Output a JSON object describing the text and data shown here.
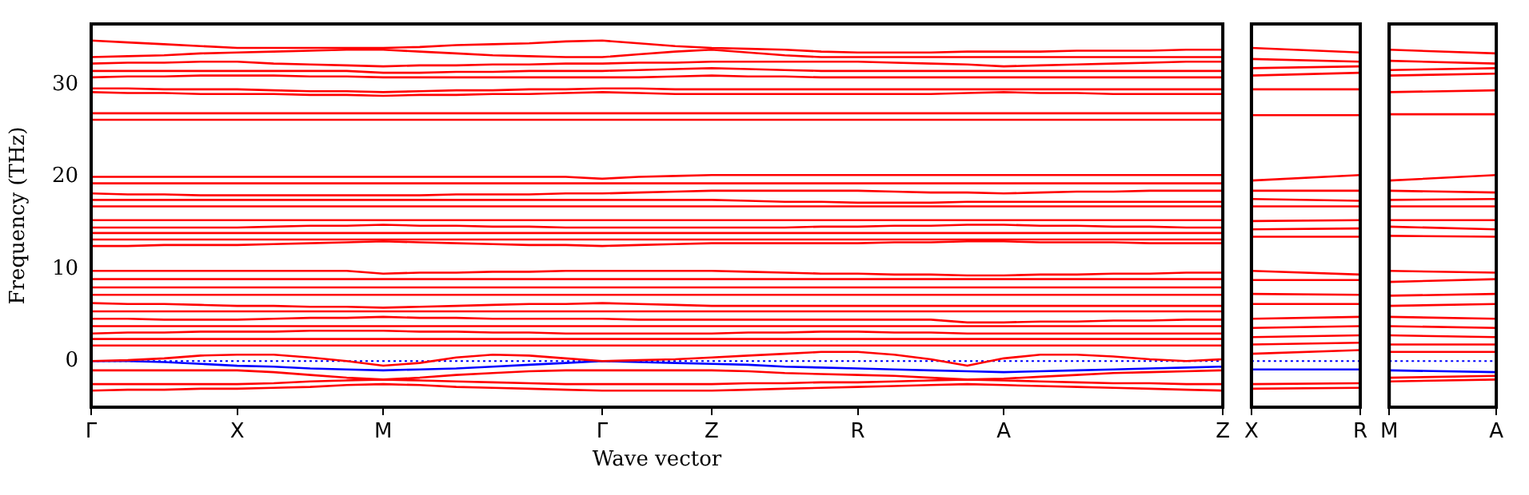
{
  "chart_data": [
    {
      "type": "line",
      "xlabel": "Wave vector",
      "ylabel": "Frequency (THz)",
      "marker": "none",
      "line_style": "solid",
      "categories": [
        "Γ",
        null,
        null,
        null,
        "X",
        null,
        null,
        null,
        "M",
        null,
        null,
        null,
        null,
        null,
        "Γ",
        null,
        null,
        "Z",
        null,
        null,
        null,
        "R",
        null,
        null,
        null,
        "A",
        null,
        null,
        null,
        null,
        null,
        "Z"
      ],
      "ylim": [
        -5,
        36.6
      ],
      "yticks": [
        0,
        10,
        20,
        30
      ],
      "ref_lines": [
        {
          "axis": "y",
          "value": 0,
          "color": "#0000ff",
          "line_style": "dotted"
        }
      ],
      "series": [
        {
          "color": "#ff0000",
          "values": [
            34.8,
            34.6,
            34.4,
            34.2,
            34,
            34,
            34,
            34,
            34,
            34.1,
            34.3,
            34.4,
            34.5,
            34.7,
            34.8,
            34.5,
            34.2,
            34,
            33.9,
            33.8,
            33.6,
            33.5,
            33.5,
            33.5,
            33.6,
            33.6,
            33.6,
            33.7,
            33.7,
            33.7,
            33.8,
            33.8
          ]
        },
        {
          "color": "#ff0000",
          "values": [
            33,
            33.1,
            33.2,
            33.4,
            33.5,
            33.6,
            33.7,
            33.8,
            33.8,
            33.6,
            33.4,
            33.2,
            33.1,
            33,
            33,
            33.3,
            33.6,
            33.8,
            33.5,
            33.2,
            33,
            33,
            33,
            33,
            33,
            33,
            33,
            33,
            33,
            33,
            33,
            33
          ]
        },
        {
          "color": "#ff0000",
          "values": [
            32.3,
            32.4,
            32.4,
            32.5,
            32.5,
            32.3,
            32.2,
            32.1,
            32,
            32.1,
            32.1,
            32.2,
            32.2,
            32.3,
            32.3,
            32.4,
            32.4,
            32.5,
            32.5,
            32.5,
            32.5,
            32.5,
            32.4,
            32.3,
            32.2,
            32,
            32.1,
            32.2,
            32.3,
            32.4,
            32.5,
            32.5
          ]
        },
        {
          "color": "#ff0000",
          "values": [
            31.5,
            31.5,
            31.5,
            31.5,
            31.5,
            31.5,
            31.5,
            31.5,
            31.3,
            31.3,
            31.4,
            31.4,
            31.5,
            31.5,
            31.5,
            31.6,
            31.7,
            31.8,
            31.7,
            31.6,
            31.5,
            31.5,
            31.5,
            31.5,
            31.5,
            31.5,
            31.5,
            31.5,
            31.5,
            31.5,
            31.5,
            31.5
          ]
        },
        {
          "color": "#ff0000",
          "values": [
            30.8,
            30.9,
            30.9,
            31,
            31,
            31,
            30.9,
            30.9,
            30.8,
            30.8,
            30.8,
            30.8,
            30.8,
            30.8,
            30.8,
            30.8,
            30.9,
            31,
            30.9,
            30.9,
            30.8,
            30.8,
            30.8,
            30.8,
            30.8,
            30.8,
            30.8,
            30.8,
            30.8,
            30.8,
            30.8,
            30.8
          ]
        },
        {
          "color": "#ff0000",
          "values": [
            29.6,
            29.6,
            29.5,
            29.5,
            29.5,
            29.4,
            29.3,
            29.3,
            29.2,
            29.3,
            29.4,
            29.4,
            29.5,
            29.5,
            29.6,
            29.6,
            29.5,
            29.5,
            29.5,
            29.5,
            29.5,
            29.5,
            29.5,
            29.5,
            29.5,
            29.5,
            29.5,
            29.5,
            29.5,
            29.5,
            29.5,
            29.5
          ]
        },
        {
          "color": "#ff0000",
          "values": [
            29.2,
            29.1,
            29.1,
            29,
            29,
            29,
            28.9,
            28.9,
            28.8,
            28.9,
            28.9,
            29,
            29,
            29.1,
            29.2,
            29.1,
            29,
            29,
            29,
            29,
            29,
            29,
            29,
            29,
            29.1,
            29.2,
            29.1,
            29.1,
            29,
            29,
            29,
            29
          ]
        },
        {
          "color": "#ff0000",
          "values": [
            26.9,
            26.9,
            26.9,
            26.9,
            26.9,
            26.9,
            26.9,
            26.9,
            26.9,
            26.9,
            26.9,
            26.9,
            26.9,
            26.9,
            26.9,
            26.9,
            26.9,
            26.9,
            26.9,
            26.9,
            26.9,
            26.9,
            26.9,
            26.9,
            26.9,
            26.9,
            26.9,
            26.9,
            26.9,
            26.9,
            26.9,
            26.9
          ]
        },
        {
          "color": "#ff0000",
          "values": [
            26.2,
            26.2,
            26.2,
            26.2,
            26.2,
            26.2,
            26.2,
            26.2,
            26.2,
            26.2,
            26.2,
            26.2,
            26.2,
            26.2,
            26.2,
            26.2,
            26.2,
            26.2,
            26.2,
            26.2,
            26.2,
            26.2,
            26.2,
            26.2,
            26.2,
            26.2,
            26.2,
            26.2,
            26.2,
            26.2,
            26.2,
            26.2
          ]
        },
        {
          "color": "#ff0000",
          "values": [
            20,
            20,
            20,
            20,
            20,
            20,
            20,
            20,
            20,
            20,
            20,
            20,
            20,
            20,
            19.8,
            20,
            20.1,
            20.2,
            20.2,
            20.2,
            20.2,
            20.2,
            20.2,
            20.2,
            20.2,
            20.2,
            20.2,
            20.2,
            20.2,
            20.2,
            20.2,
            20.2
          ]
        },
        {
          "color": "#ff0000",
          "values": [
            19.3,
            19.3,
            19.3,
            19.3,
            19.3,
            19.3,
            19.3,
            19.3,
            19.3,
            19.3,
            19.3,
            19.3,
            19.3,
            19.3,
            19.3,
            19.3,
            19.3,
            19.3,
            19.3,
            19.3,
            19.3,
            19.3,
            19.3,
            19.3,
            19.3,
            19.3,
            19.3,
            19.3,
            19.3,
            19.3,
            19.3,
            19.3
          ]
        },
        {
          "color": "#ff0000",
          "values": [
            18.2,
            18.1,
            18.1,
            18,
            18,
            18,
            18,
            18,
            18,
            18,
            18.1,
            18.1,
            18.1,
            18.2,
            18.2,
            18.3,
            18.4,
            18.5,
            18.5,
            18.5,
            18.5,
            18.5,
            18.4,
            18.3,
            18.3,
            18.2,
            18.3,
            18.4,
            18.4,
            18.5,
            18.5,
            18.5
          ]
        },
        {
          "color": "#ff0000",
          "values": [
            17.5,
            17.5,
            17.5,
            17.5,
            17.5,
            17.5,
            17.5,
            17.5,
            17.5,
            17.5,
            17.5,
            17.5,
            17.5,
            17.5,
            17.5,
            17.5,
            17.5,
            17.5,
            17.4,
            17.3,
            17.3,
            17.2,
            17.2,
            17.2,
            17.3,
            17.3,
            17.3,
            17.3,
            17.3,
            17.3,
            17.3,
            17.3
          ]
        },
        {
          "color": "#ff0000",
          "values": [
            16.8,
            16.8,
            16.8,
            16.8,
            16.8,
            16.8,
            16.8,
            16.8,
            16.8,
            16.8,
            16.8,
            16.8,
            16.8,
            16.8,
            16.8,
            16.8,
            16.8,
            16.8,
            16.8,
            16.8,
            16.8,
            16.8,
            16.8,
            16.8,
            16.8,
            16.8,
            16.8,
            16.8,
            16.8,
            16.8,
            16.8,
            16.8
          ]
        },
        {
          "color": "#ff0000",
          "values": [
            15.3,
            15.3,
            15.3,
            15.3,
            15.3,
            15.3,
            15.3,
            15.3,
            15.3,
            15.3,
            15.3,
            15.3,
            15.3,
            15.3,
            15.3,
            15.3,
            15.3,
            15.3,
            15.3,
            15.3,
            15.3,
            15.3,
            15.3,
            15.3,
            15.3,
            15.3,
            15.3,
            15.3,
            15.3,
            15.3,
            15.3,
            15.3
          ]
        },
        {
          "color": "#ff0000",
          "values": [
            14.5,
            14.5,
            14.5,
            14.5,
            14.5,
            14.6,
            14.7,
            14.7,
            14.8,
            14.7,
            14.7,
            14.6,
            14.6,
            14.5,
            14.5,
            14.5,
            14.5,
            14.5,
            14.5,
            14.5,
            14.6,
            14.6,
            14.7,
            14.7,
            14.8,
            14.8,
            14.7,
            14.7,
            14.6,
            14.6,
            14.5,
            14.5
          ]
        },
        {
          "color": "#ff0000",
          "values": [
            13.9,
            13.9,
            13.9,
            13.9,
            13.9,
            13.9,
            13.9,
            13.9,
            13.9,
            13.9,
            13.9,
            13.9,
            13.9,
            13.9,
            13.9,
            13.9,
            13.9,
            13.9,
            13.9,
            13.9,
            13.9,
            13.9,
            13.9,
            13.9,
            13.9,
            13.9,
            13.9,
            13.9,
            13.9,
            13.9,
            13.9,
            13.9
          ]
        },
        {
          "color": "#ff0000",
          "values": [
            13.2,
            13.2,
            13.2,
            13.2,
            13.2,
            13.2,
            13.2,
            13.2,
            13.2,
            13.2,
            13.2,
            13.2,
            13.2,
            13.2,
            13.2,
            13.2,
            13.2,
            13.2,
            13.2,
            13.2,
            13.2,
            13.2,
            13.2,
            13.2,
            13.2,
            13.2,
            13.2,
            13.2,
            13.2,
            13.2,
            13.2,
            13.2
          ]
        },
        {
          "color": "#ff0000",
          "values": [
            12.5,
            12.5,
            12.6,
            12.6,
            12.6,
            12.7,
            12.8,
            12.9,
            13,
            12.9,
            12.8,
            12.7,
            12.6,
            12.6,
            12.5,
            12.6,
            12.7,
            12.8,
            12.8,
            12.8,
            12.8,
            12.8,
            12.9,
            12.9,
            13,
            13,
            12.9,
            12.9,
            12.9,
            12.8,
            12.8,
            12.8
          ]
        },
        {
          "color": "#ff0000",
          "values": [
            9.8,
            9.8,
            9.8,
            9.8,
            9.8,
            9.8,
            9.8,
            9.8,
            9.5,
            9.6,
            9.6,
            9.7,
            9.7,
            9.8,
            9.8,
            9.8,
            9.8,
            9.8,
            9.7,
            9.6,
            9.5,
            9.5,
            9.4,
            9.4,
            9.3,
            9.3,
            9.4,
            9.4,
            9.5,
            9.5,
            9.6,
            9.6
          ]
        },
        {
          "color": "#ff0000",
          "values": [
            8.9,
            8.9,
            8.9,
            8.9,
            8.9,
            8.9,
            8.9,
            8.9,
            8.9,
            8.9,
            8.9,
            8.9,
            8.9,
            8.9,
            8.9,
            8.9,
            8.9,
            8.9,
            8.9,
            8.9,
            8.9,
            8.9,
            8.9,
            8.9,
            8.9,
            8.9,
            8.9,
            8.9,
            8.9,
            8.9,
            8.9,
            8.9
          ]
        },
        {
          "color": "#ff0000",
          "values": [
            8,
            8,
            8,
            8,
            8,
            8,
            8,
            8,
            8,
            8,
            8,
            8,
            8,
            8,
            8,
            8,
            8,
            8,
            8,
            8,
            8,
            8,
            8,
            8,
            8,
            8,
            8,
            8,
            8,
            8,
            8,
            8
          ]
        },
        {
          "color": "#ff0000",
          "values": [
            7.2,
            7.2,
            7.2,
            7.2,
            7.2,
            7.2,
            7.2,
            7.2,
            7.2,
            7.2,
            7.2,
            7.2,
            7.2,
            7.2,
            7.2,
            7.2,
            7.2,
            7.2,
            7.2,
            7.2,
            7.2,
            7.2,
            7.2,
            7.2,
            7.2,
            7.2,
            7.2,
            7.2,
            7.2,
            7.2,
            7.2,
            7.2
          ]
        },
        {
          "color": "#ff0000",
          "values": [
            6.3,
            6.2,
            6.2,
            6.1,
            6,
            6,
            5.9,
            5.9,
            5.8,
            5.9,
            6,
            6.1,
            6.2,
            6.2,
            6.3,
            6.2,
            6.1,
            6,
            6,
            6,
            6,
            6,
            6,
            6,
            6,
            6,
            6,
            6,
            6,
            6,
            6,
            6
          ]
        },
        {
          "color": "#ff0000",
          "values": [
            5.4,
            5.4,
            5.4,
            5.4,
            5.4,
            5.4,
            5.4,
            5.4,
            5.4,
            5.4,
            5.4,
            5.4,
            5.4,
            5.4,
            5.4,
            5.4,
            5.4,
            5.4,
            5.4,
            5.4,
            5.4,
            5.4,
            5.4,
            5.4,
            5.4,
            5.4,
            5.4,
            5.4,
            5.4,
            5.4,
            5.4,
            5.4
          ]
        },
        {
          "color": "#ff0000",
          "values": [
            4.6,
            4.6,
            4.5,
            4.5,
            4.5,
            4.6,
            4.7,
            4.7,
            4.8,
            4.7,
            4.7,
            4.6,
            4.6,
            4.6,
            4.6,
            4.5,
            4.5,
            4.5,
            4.5,
            4.5,
            4.5,
            4.5,
            4.5,
            4.5,
            4.2,
            4.2,
            4.3,
            4.3,
            4.4,
            4.4,
            4.5,
            4.5
          ]
        },
        {
          "color": "#ff0000",
          "values": [
            3.8,
            3.8,
            3.8,
            3.8,
            3.8,
            3.8,
            3.8,
            3.8,
            3.8,
            3.8,
            3.8,
            3.8,
            3.8,
            3.8,
            3.8,
            3.8,
            3.8,
            3.8,
            3.8,
            3.8,
            3.8,
            3.8,
            3.8,
            3.8,
            3.8,
            3.8,
            3.8,
            3.8,
            3.8,
            3.8,
            3.8,
            3.8
          ]
        },
        {
          "color": "#ff0000",
          "values": [
            3,
            3.1,
            3.1,
            3.2,
            3.2,
            3.2,
            3.3,
            3.3,
            3.3,
            3.2,
            3.2,
            3.1,
            3.1,
            3,
            3,
            3,
            3,
            3,
            3.1,
            3.1,
            3.2,
            3.2,
            3.1,
            3.1,
            3,
            3,
            3,
            3,
            3,
            3,
            3,
            3
          ]
        },
        {
          "color": "#ff0000",
          "values": [
            2.4,
            2.4,
            2.4,
            2.4,
            2.4,
            2.4,
            2.4,
            2.4,
            2.4,
            2.4,
            2.4,
            2.4,
            2.4,
            2.4,
            2.4,
            2.4,
            2.4,
            2.4,
            2.4,
            2.4,
            2.4,
            2.4,
            2.4,
            2.4,
            2.4,
            2.4,
            2.4,
            2.4,
            2.4,
            2.4,
            2.4,
            2.4
          ]
        },
        {
          "color": "#ff0000",
          "values": [
            1.7,
            1.7,
            1.7,
            1.7,
            1.7,
            1.7,
            1.7,
            1.7,
            1.7,
            1.7,
            1.7,
            1.7,
            1.7,
            1.7,
            1.7,
            1.7,
            1.7,
            1.7,
            1.7,
            1.7,
            1.7,
            1.7,
            1.7,
            1.7,
            1.7,
            1.7,
            1.7,
            1.7,
            1.7,
            1.7,
            1.7,
            1.7
          ]
        },
        {
          "color": "#ff0000",
          "values": [
            0,
            0.1,
            0.3,
            0.6,
            0.7,
            0.7,
            0.4,
            0,
            -0.5,
            -0.2,
            0.4,
            0.7,
            0.6,
            0.3,
            0,
            0.1,
            0.2,
            0.4,
            0.6,
            0.8,
            1,
            1,
            0.7,
            0.2,
            -0.5,
            0.3,
            0.7,
            0.7,
            0.5,
            0.2,
            0,
            0.2
          ]
        },
        {
          "color": "#0000ff",
          "values": [
            0,
            0,
            -0.1,
            -0.3,
            -0.5,
            -0.6,
            -0.8,
            -0.9,
            -1,
            -0.9,
            -0.8,
            -0.6,
            -0.4,
            -0.2,
            0,
            -0.1,
            -0.2,
            -0.3,
            -0.4,
            -0.6,
            -0.7,
            -0.8,
            -0.9,
            -1,
            -1.1,
            -1.2,
            -1.1,
            -1,
            -0.9,
            -0.8,
            -0.7,
            -0.6
          ]
        },
        {
          "color": "#ff0000",
          "values": [
            -1,
            -1,
            -1,
            -1,
            -1,
            -1.2,
            -1.5,
            -1.8,
            -2,
            -1.8,
            -1.5,
            -1.3,
            -1.1,
            -1,
            -1,
            -1,
            -1,
            -1,
            -1.1,
            -1.3,
            -1.4,
            -1.5,
            -1.6,
            -1.8,
            -2,
            -1.9,
            -1.7,
            -1.5,
            -1.3,
            -1.2,
            -1.1,
            -1
          ]
        },
        {
          "color": "#ff0000",
          "values": [
            -2.5,
            -2.5,
            -2.5,
            -2.5,
            -2.5,
            -2.4,
            -2.2,
            -2.1,
            -2,
            -2.1,
            -2.2,
            -2.3,
            -2.4,
            -2.5,
            -2.5,
            -2.5,
            -2.5,
            -2.5,
            -2.4,
            -2.4,
            -2.3,
            -2.3,
            -2.2,
            -2.1,
            -2,
            -2.1,
            -2.2,
            -2.3,
            -2.4,
            -2.4,
            -2.5,
            -2.5
          ]
        },
        {
          "color": "#ff0000",
          "values": [
            -3.2,
            -3.1,
            -3.1,
            -3,
            -3,
            -2.9,
            -2.8,
            -2.6,
            -2.5,
            -2.6,
            -2.8,
            -2.9,
            -3,
            -3.1,
            -3.2,
            -3.2,
            -3.2,
            -3.2,
            -3.1,
            -3,
            -2.9,
            -2.8,
            -2.7,
            -2.6,
            -2.5,
            -2.6,
            -2.7,
            -2.8,
            -2.9,
            -3,
            -3.1,
            -3.2
          ]
        }
      ]
    },
    {
      "type": "line",
      "tick_labels": "x",
      "marker": "none",
      "line_style": "solid",
      "categories": [
        "X",
        "R"
      ],
      "ylim": [
        -5,
        36.6
      ],
      "yticks": [
        0,
        10,
        20,
        30
      ],
      "ref_lines": [
        {
          "axis": "y",
          "value": 0,
          "color": "#0000ff",
          "line_style": "dotted"
        }
      ],
      "series": [
        {
          "color": "#ff0000",
          "values": [
            34,
            33.5
          ]
        },
        {
          "color": "#ff0000",
          "values": [
            32.8,
            32.5
          ]
        },
        {
          "color": "#ff0000",
          "values": [
            31.8,
            32
          ]
        },
        {
          "color": "#ff0000",
          "values": [
            31,
            31.3
          ]
        },
        {
          "color": "#ff0000",
          "values": [
            29.5,
            29.5
          ]
        },
        {
          "color": "#ff0000",
          "values": [
            26.7,
            26.7
          ]
        },
        {
          "color": "#ff0000",
          "values": [
            19.6,
            20.2
          ]
        },
        {
          "color": "#ff0000",
          "values": [
            18.5,
            18.5
          ]
        },
        {
          "color": "#ff0000",
          "values": [
            17.6,
            17.4
          ]
        },
        {
          "color": "#ff0000",
          "values": [
            16.8,
            16.8
          ]
        },
        {
          "color": "#ff0000",
          "values": [
            15.2,
            15.3
          ]
        },
        {
          "color": "#ff0000",
          "values": [
            14.3,
            14.4
          ]
        },
        {
          "color": "#ff0000",
          "values": [
            13.5,
            13.5
          ]
        },
        {
          "color": "#ff0000",
          "values": [
            9.8,
            9.4
          ]
        },
        {
          "color": "#ff0000",
          "values": [
            8.8,
            8.8
          ]
        },
        {
          "color": "#ff0000",
          "values": [
            7.3,
            7.2
          ]
        },
        {
          "color": "#ff0000",
          "values": [
            6.2,
            6.2
          ]
        },
        {
          "color": "#ff0000",
          "values": [
            4.6,
            4.8
          ]
        },
        {
          "color": "#ff0000",
          "values": [
            3.6,
            3.8
          ]
        },
        {
          "color": "#ff0000",
          "values": [
            2.6,
            2.8
          ]
        },
        {
          "color": "#ff0000",
          "values": [
            1.8,
            2
          ]
        },
        {
          "color": "#ff0000",
          "values": [
            0.8,
            1.2
          ]
        },
        {
          "color": "#0000ff",
          "values": [
            -0.9,
            -0.9
          ]
        },
        {
          "color": "#ff0000",
          "values": [
            -2.5,
            -2.4
          ]
        },
        {
          "color": "#ff0000",
          "values": [
            -3,
            -2.9
          ]
        }
      ]
    },
    {
      "type": "line",
      "tick_labels": "x",
      "marker": "none",
      "line_style": "solid",
      "categories": [
        "M",
        "A"
      ],
      "ylim": [
        -5,
        36.6
      ],
      "yticks": [
        0,
        10,
        20,
        30
      ],
      "ref_lines": [
        {
          "axis": "y",
          "value": 0,
          "color": "#0000ff",
          "line_style": "dotted"
        }
      ],
      "series": [
        {
          "color": "#ff0000",
          "values": [
            33.8,
            33.4
          ]
        },
        {
          "color": "#ff0000",
          "values": [
            32.6,
            32.3
          ]
        },
        {
          "color": "#ff0000",
          "values": [
            31.6,
            31.8
          ]
        },
        {
          "color": "#ff0000",
          "values": [
            31,
            31.2
          ]
        },
        {
          "color": "#ff0000",
          "values": [
            29.2,
            29.4
          ]
        },
        {
          "color": "#ff0000",
          "values": [
            26.8,
            26.8
          ]
        },
        {
          "color": "#ff0000",
          "values": [
            19.6,
            20.2
          ]
        },
        {
          "color": "#ff0000",
          "values": [
            18.5,
            18.3
          ]
        },
        {
          "color": "#ff0000",
          "values": [
            17.5,
            17.6
          ]
        },
        {
          "color": "#ff0000",
          "values": [
            16.8,
            16.8
          ]
        },
        {
          "color": "#ff0000",
          "values": [
            15.3,
            15.3
          ]
        },
        {
          "color": "#ff0000",
          "values": [
            14.6,
            14.3
          ]
        },
        {
          "color": "#ff0000",
          "values": [
            13.6,
            13.5
          ]
        },
        {
          "color": "#ff0000",
          "values": [
            9.8,
            9.6
          ]
        },
        {
          "color": "#ff0000",
          "values": [
            8.6,
            8.9
          ]
        },
        {
          "color": "#ff0000",
          "values": [
            7.1,
            7.3
          ]
        },
        {
          "color": "#ff0000",
          "values": [
            6,
            6.2
          ]
        },
        {
          "color": "#ff0000",
          "values": [
            4.8,
            4.6
          ]
        },
        {
          "color": "#ff0000",
          "values": [
            3.8,
            3.6
          ]
        },
        {
          "color": "#ff0000",
          "values": [
            2.8,
            2.6
          ]
        },
        {
          "color": "#ff0000",
          "values": [
            1.8,
            1.8
          ]
        },
        {
          "color": "#ff0000",
          "values": [
            1,
            1
          ]
        },
        {
          "color": "#0000ff",
          "values": [
            -1,
            -1.2
          ]
        },
        {
          "color": "#ff0000",
          "values": [
            -1.8,
            -1.6
          ]
        },
        {
          "color": "#ff0000",
          "values": [
            -2.2,
            -2
          ]
        }
      ]
    }
  ]
}
